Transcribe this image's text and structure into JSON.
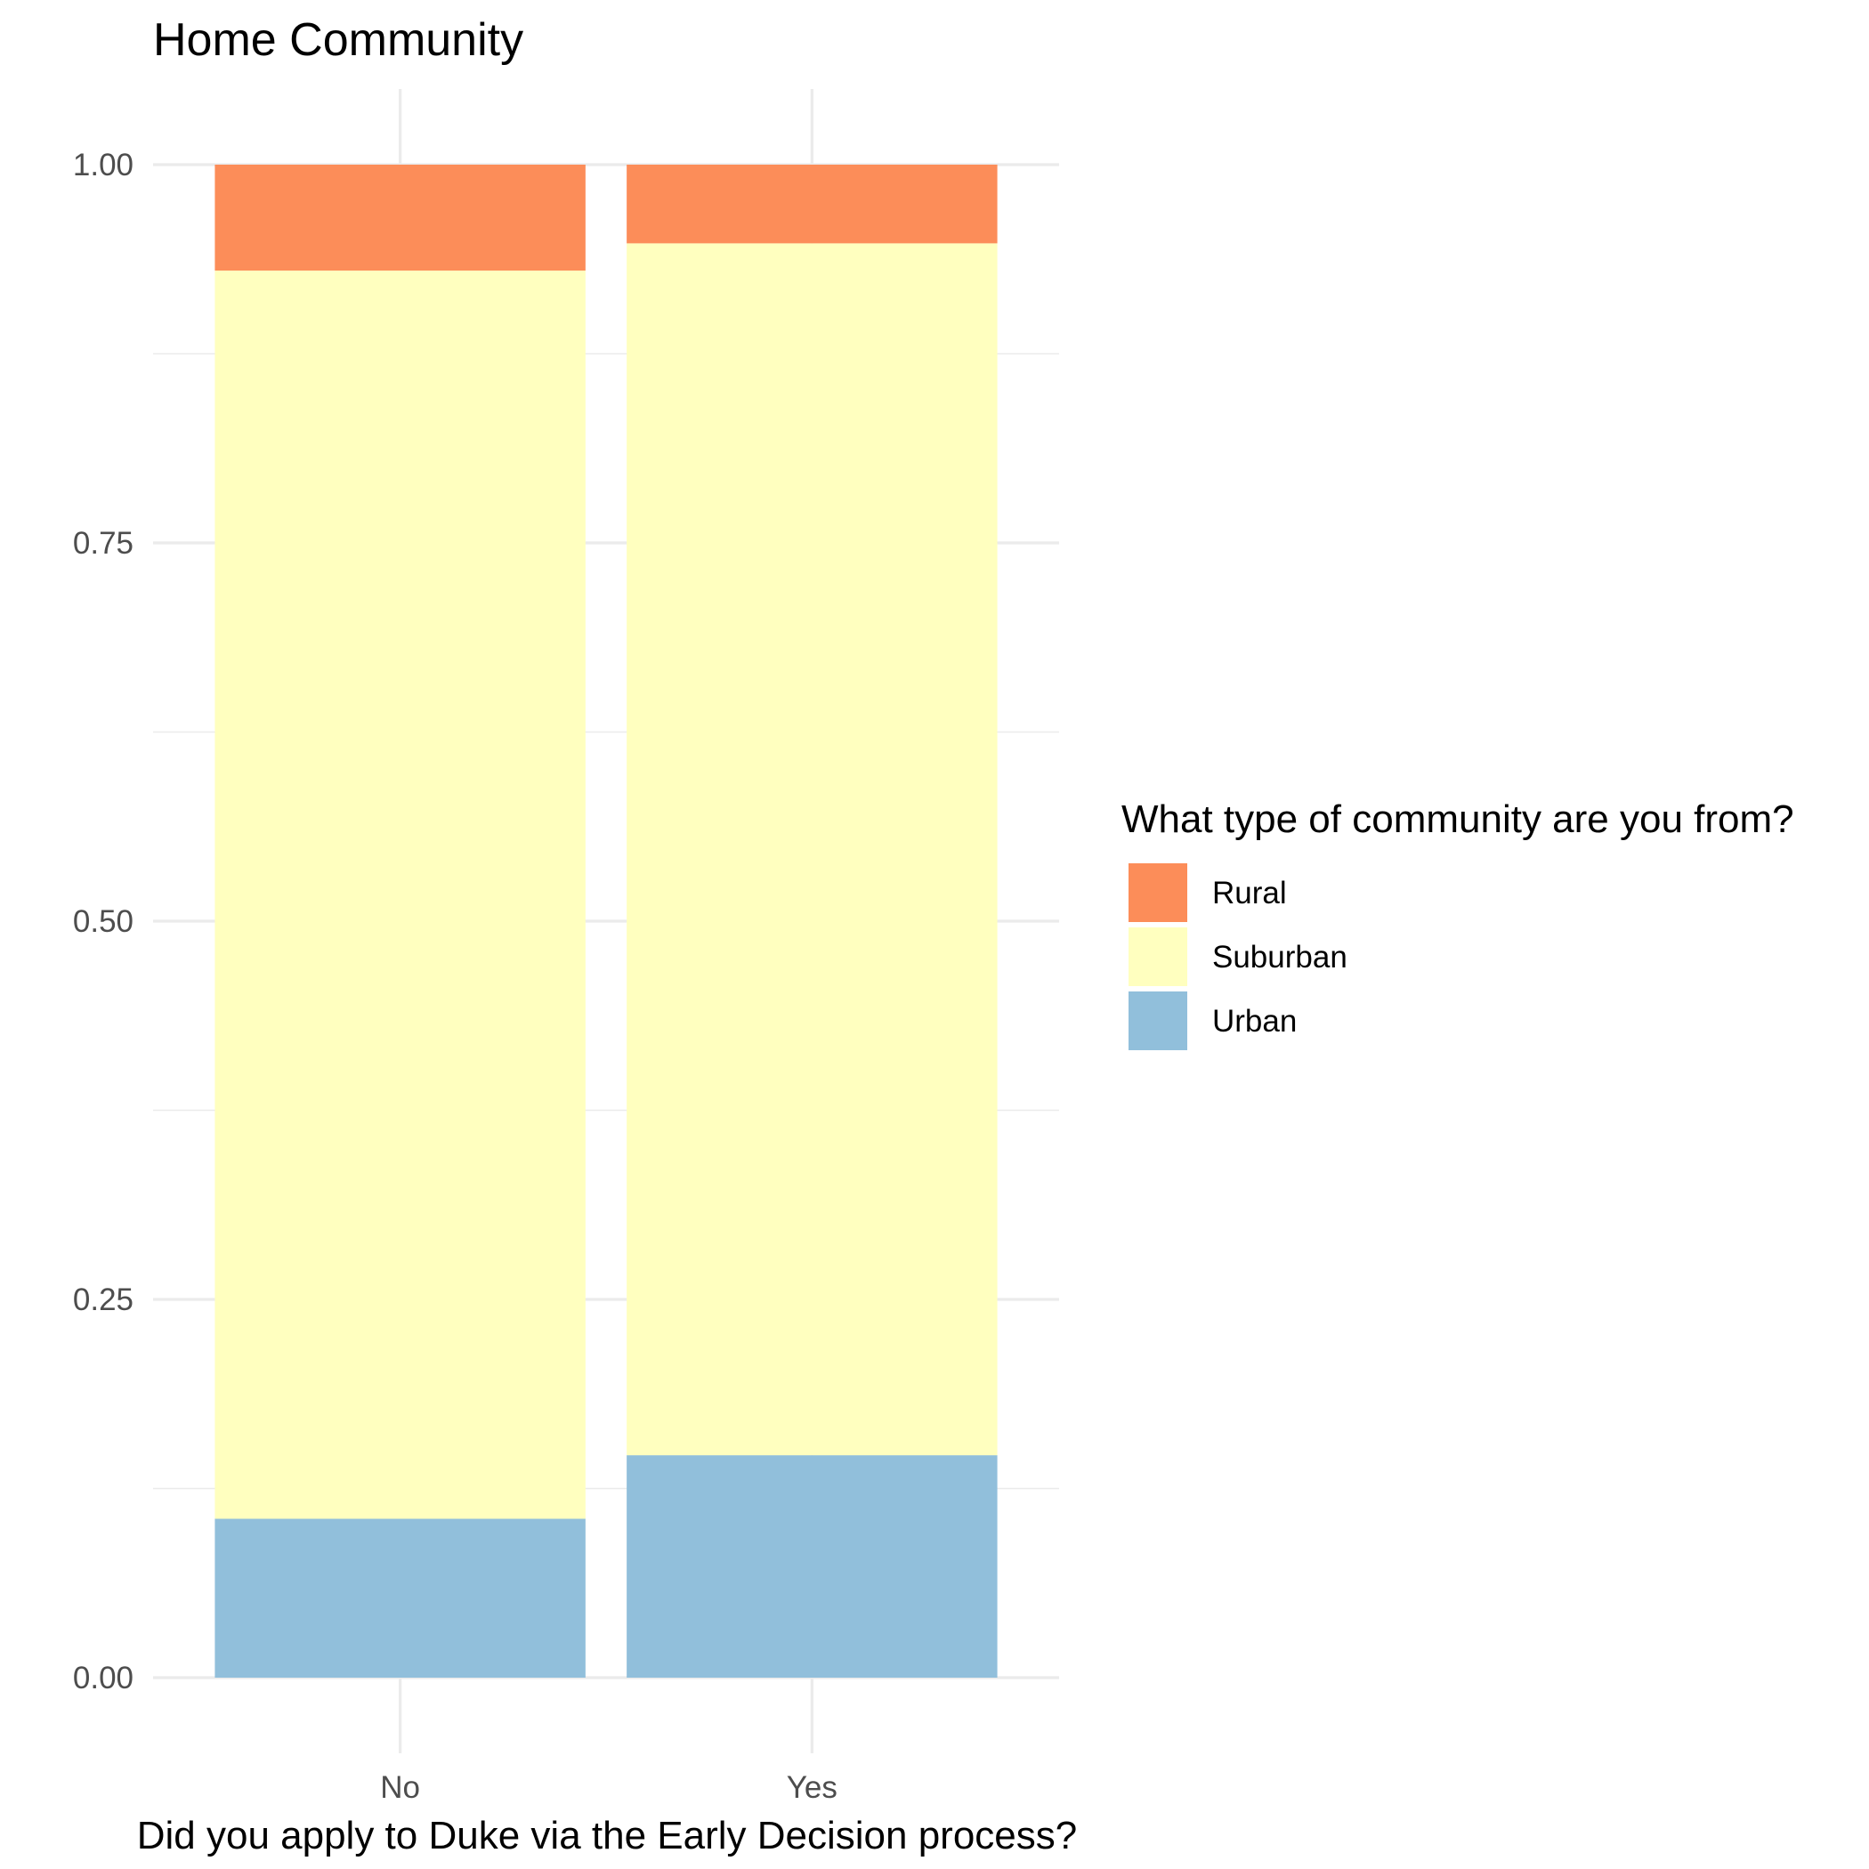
{
  "chart_data": {
    "type": "bar",
    "stacked": true,
    "title": "Home Community",
    "xlabel": "Did you apply to Duke via the Early Decision process?",
    "ylabel": "",
    "categories": [
      "No",
      "Yes"
    ],
    "ylim": [
      -0.05,
      1.05
    ],
    "yticks": [
      0,
      0.25,
      0.5,
      0.75,
      1.0
    ],
    "ytick_labels": [
      "0.00",
      "0.25",
      "0.50",
      "0.75",
      "1.00"
    ],
    "grid": true,
    "legend": {
      "title": "What type of community are you from?",
      "position": "right"
    },
    "series": [
      {
        "name": "Rural",
        "values": [
          0.07,
          0.052
        ],
        "color": "#fc8d59"
      },
      {
        "name": "Suburban",
        "values": [
          0.825,
          0.801
        ],
        "color": "#ffffbf"
      },
      {
        "name": "Urban",
        "values": [
          0.105,
          0.147
        ],
        "color": "#91bfdb"
      }
    ]
  }
}
